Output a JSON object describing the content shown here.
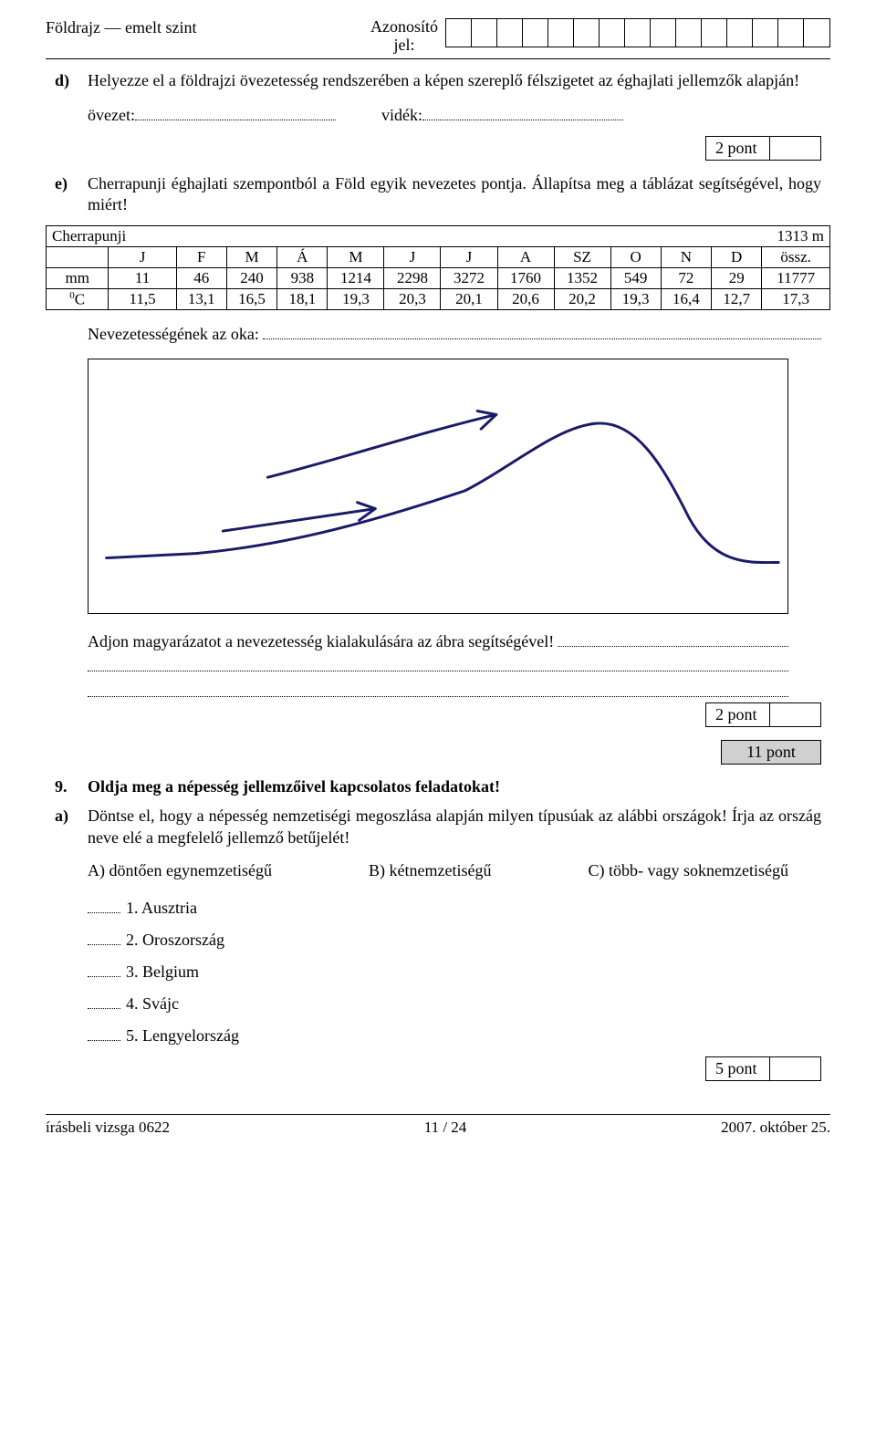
{
  "header": {
    "subject": "Földrajz — emelt szint",
    "id_label_line1": "Azonosító",
    "id_label_line2": "jel:",
    "id_cells": 15
  },
  "task_d": {
    "label": "d)",
    "text": "Helyezze el a földrajzi övezetesség rendszerében a képen szereplő félszigetet az éghajlati jellemzők alapján!",
    "fill_ovezet": "övezet:",
    "fill_videk": "vidék:",
    "points": "2 pont"
  },
  "task_e": {
    "label": "e)",
    "text": "Cherrapunji éghajlati szempontból a Föld egyik nevezetes pontja. Állapítsa meg a táblázat segítségével, hogy miért!"
  },
  "climate": {
    "title": "Cherrapunji",
    "elevation": "1313 m",
    "months": [
      "J",
      "F",
      "M",
      "Á",
      "M",
      "J",
      "J",
      "A",
      "SZ",
      "O",
      "N",
      "D",
      "össz."
    ],
    "mm_label": "mm",
    "mm": [
      "11",
      "46",
      "240",
      "938",
      "1214",
      "2298",
      "3272",
      "1760",
      "1352",
      "549",
      "72",
      "29",
      "11777"
    ],
    "c_label_sup": "0",
    "c_label": "C",
    "c": [
      "11,5",
      "13,1",
      "16,5",
      "18,1",
      "19,3",
      "20,3",
      "20,1",
      "20,6",
      "20,2",
      "19,3",
      "16,4",
      "12,7",
      "17,3"
    ]
  },
  "reason": {
    "label": "Nevezetességének az oka:"
  },
  "figure": {
    "stroke": "#1a1a6a",
    "stroke_width": 3
  },
  "explain": {
    "text": "Adjon magyarázatot a nevezetesség kialakulására az ábra segítségével!",
    "points": "2 pont"
  },
  "total_points": "11 pont",
  "task9": {
    "num": "9.",
    "title": "Oldja meg a népesség jellemzőivel kapcsolatos feladatokat!",
    "sub_a_label": "a)",
    "sub_a_text": "Döntse el, hogy a népesség nemzetiségi megoszlása alapján milyen típusúak az alábbi országok! Írja az ország neve elé a megfelelő jellemző betűjelét!",
    "opt_a": "A) döntően egynemzetiségű",
    "opt_b": "B) kétnemzetiségű",
    "opt_c": "C) több- vagy soknemzetiségű",
    "countries": [
      "1.  Ausztria",
      "2.  Oroszország",
      "3.  Belgium",
      "4.  Svájc",
      "5.  Lengyelország"
    ],
    "points": "5 pont"
  },
  "footer": {
    "left": "írásbeli vizsga 0622",
    "center": "11 / 24",
    "right": "2007. október 25."
  }
}
